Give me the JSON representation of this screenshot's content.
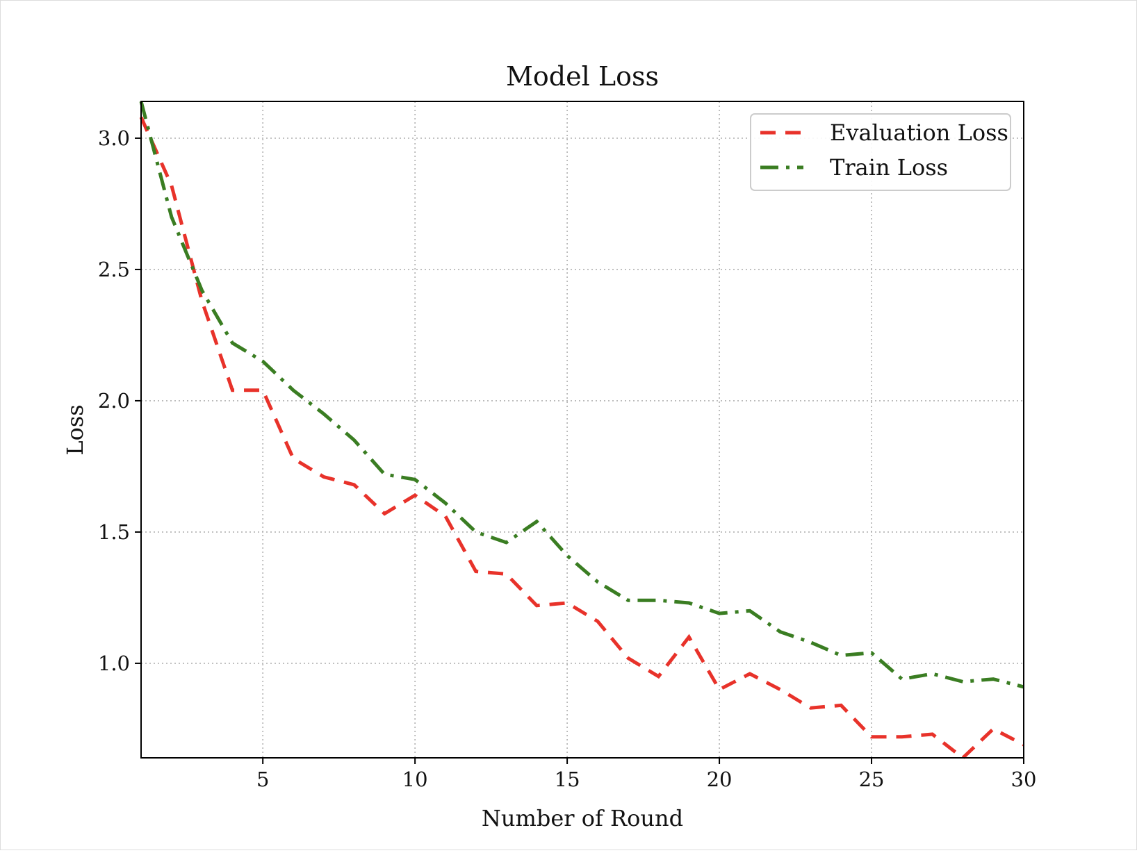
{
  "chart_data": {
    "type": "line",
    "title": "Model Loss",
    "xlabel": "Number of Round",
    "ylabel": "Loss",
    "xlim": [
      1,
      30
    ],
    "ylim": [
      0.64,
      3.14
    ],
    "xticks": [
      5,
      10,
      15,
      20,
      25,
      30
    ],
    "xtick_labels": [
      "5",
      "10",
      "15",
      "20",
      "25",
      "30"
    ],
    "yticks": [
      1.0,
      1.5,
      2.0,
      2.5,
      3.0
    ],
    "ytick_labels": [
      "1.0",
      "1.5",
      "2.0",
      "2.5",
      "3.0"
    ],
    "grid": true,
    "grid_style": "dotted",
    "legend_position": "top-right",
    "x": [
      1,
      2,
      3,
      4,
      5,
      6,
      7,
      8,
      9,
      10,
      11,
      12,
      13,
      14,
      15,
      16,
      17,
      18,
      19,
      20,
      21,
      22,
      23,
      24,
      25,
      26,
      27,
      28,
      29,
      30
    ],
    "series": [
      {
        "name": "Evaluation Loss",
        "color": "#e8322a",
        "dash": "dashed",
        "values": [
          3.08,
          2.82,
          2.38,
          2.04,
          2.04,
          1.78,
          1.71,
          1.68,
          1.57,
          1.64,
          1.56,
          1.35,
          1.34,
          1.22,
          1.23,
          1.16,
          1.02,
          0.95,
          1.1,
          0.9,
          0.96,
          0.9,
          0.83,
          0.84,
          0.72,
          0.72,
          0.73,
          0.64,
          0.75,
          0.69
        ]
      },
      {
        "name": "Train Loss",
        "color": "#3a7d22",
        "dash": "dashdot",
        "values": [
          3.14,
          2.7,
          2.42,
          2.22,
          2.15,
          2.04,
          1.95,
          1.85,
          1.72,
          1.7,
          1.61,
          1.5,
          1.46,
          1.54,
          1.41,
          1.31,
          1.24,
          1.24,
          1.23,
          1.19,
          1.2,
          1.12,
          1.08,
          1.03,
          1.04,
          0.94,
          0.96,
          0.93,
          0.94,
          0.91
        ]
      }
    ]
  }
}
